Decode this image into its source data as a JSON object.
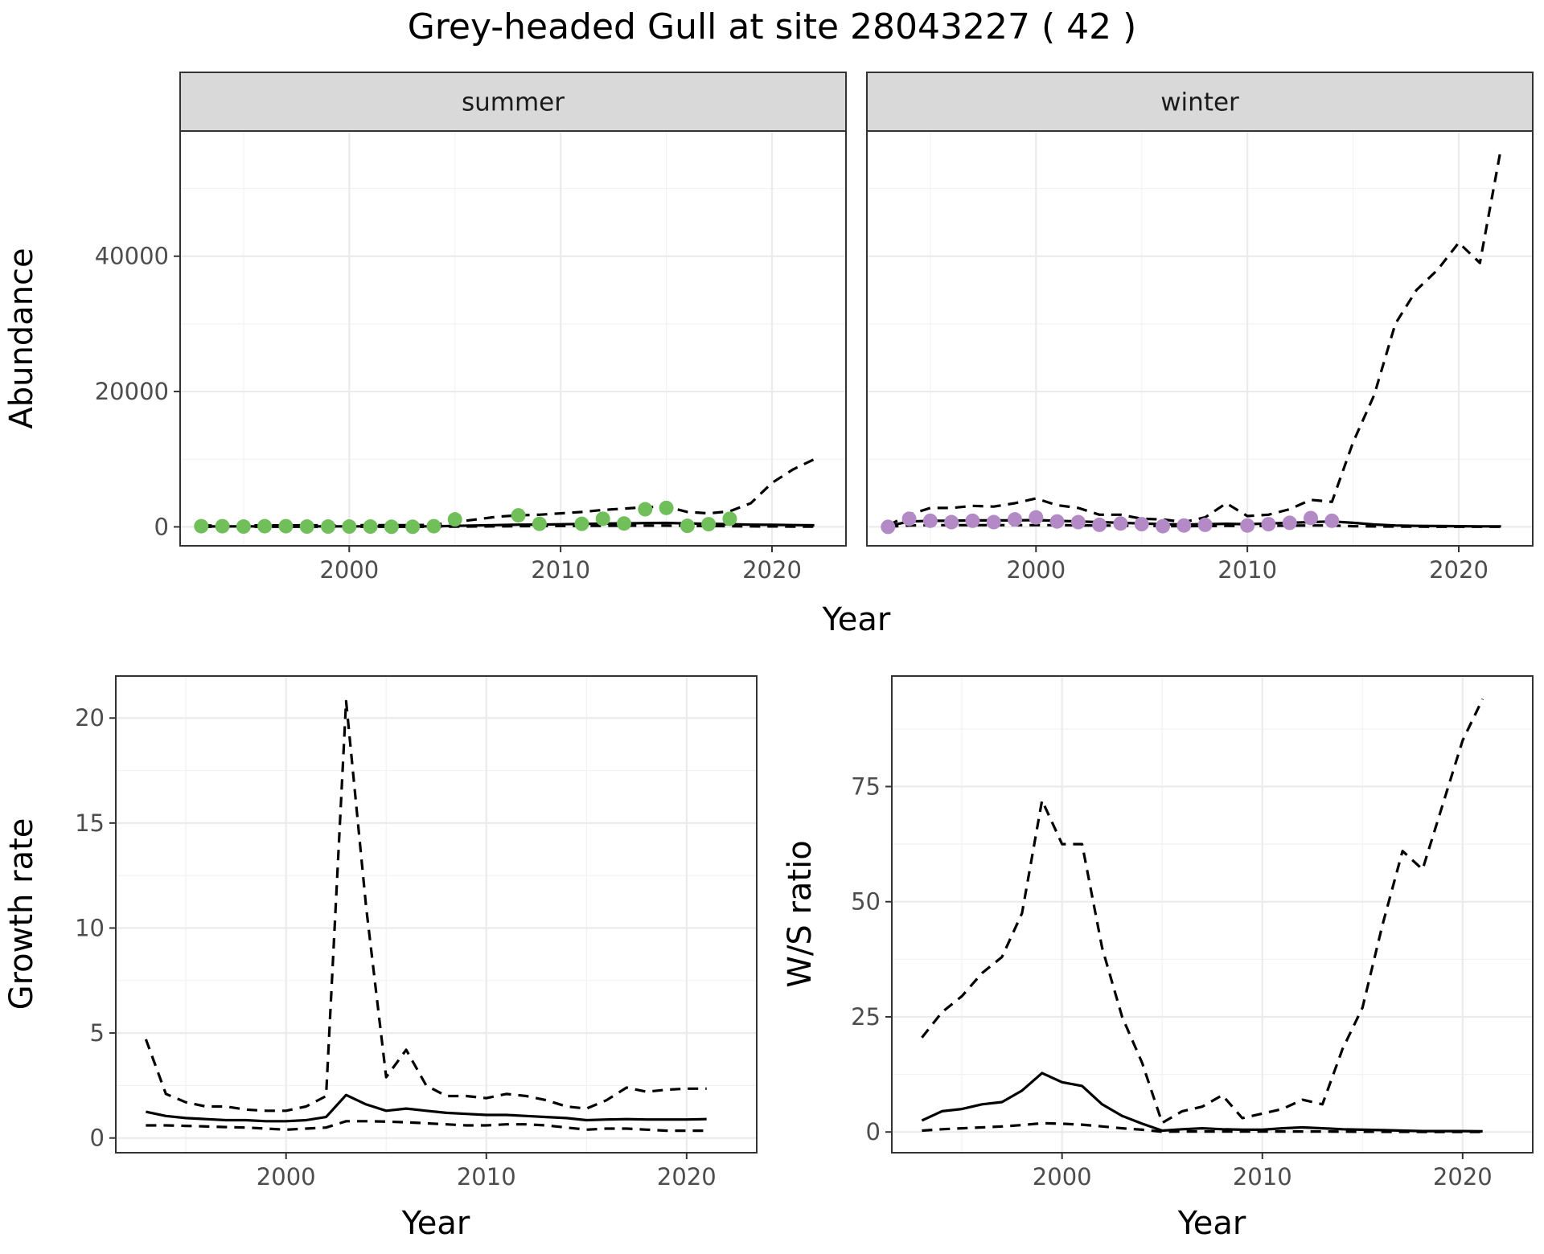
{
  "figure": {
    "title": "Grey-headed Gull at site 28043227 ( 42 )"
  },
  "chart_data": [
    {
      "type": "line",
      "panel": "summer",
      "facet_label": "summer",
      "xlabel": "Year",
      "ylabel": "Abundance",
      "xlim": [
        1992,
        2023.5
      ],
      "ylim": [
        -2800,
        58500
      ],
      "xticks": [
        2000,
        2010,
        2020
      ],
      "yticks": [
        0,
        20000,
        40000
      ],
      "xtick_labels": [
        "2000",
        "2010",
        "2020"
      ],
      "ytick_labels": [
        "0",
        "20000",
        "40000"
      ],
      "point_color": "#70bf5a",
      "series": [
        {
          "style": "estimate-solid",
          "x": [
            1993,
            1994,
            1995,
            1996,
            1997,
            1998,
            1999,
            2000,
            2001,
            2002,
            2003,
            2004,
            2005,
            2006,
            2007,
            2008,
            2009,
            2010,
            2011,
            2012,
            2013,
            2014,
            2015,
            2016,
            2017,
            2018,
            2019,
            2020,
            2021,
            2022
          ],
          "y": [
            60,
            60,
            70,
            70,
            70,
            70,
            70,
            70,
            70,
            70,
            70,
            80,
            150,
            200,
            260,
            320,
            340,
            380,
            430,
            480,
            520,
            560,
            580,
            500,
            450,
            400,
            330,
            300,
            260,
            230
          ]
        },
        {
          "style": "upper-dashed",
          "x": [
            1993,
            1994,
            1995,
            1996,
            1997,
            1998,
            1999,
            2000,
            2001,
            2002,
            2003,
            2004,
            2005,
            2006,
            2007,
            2008,
            2009,
            2010,
            2011,
            2012,
            2013,
            2014,
            2015,
            2016,
            2017,
            2018,
            2019,
            2020,
            2021,
            2022
          ],
          "y": [
            200,
            200,
            210,
            220,
            220,
            230,
            230,
            240,
            240,
            250,
            250,
            300,
            700,
            1100,
            1500,
            1700,
            1800,
            2000,
            2200,
            2500,
            2700,
            2900,
            3000,
            2200,
            2000,
            2300,
            3500,
            6500,
            8500,
            10000
          ]
        },
        {
          "style": "lower-dashed",
          "x": [
            1993,
            1994,
            1995,
            1996,
            1997,
            1998,
            1999,
            2000,
            2001,
            2002,
            2003,
            2004,
            2005,
            2006,
            2007,
            2008,
            2009,
            2010,
            2011,
            2012,
            2013,
            2014,
            2015,
            2016,
            2017,
            2018,
            2019,
            2020,
            2021,
            2022
          ],
          "y": [
            20,
            20,
            20,
            20,
            20,
            20,
            20,
            20,
            20,
            20,
            20,
            30,
            40,
            60,
            80,
            100,
            120,
            130,
            150,
            160,
            170,
            180,
            180,
            150,
            120,
            100,
            80,
            60,
            40,
            30
          ]
        },
        {
          "style": "observed-points",
          "x": [
            1993,
            1994,
            1995,
            1996,
            1997,
            1998,
            1999,
            2000,
            2001,
            2002,
            2003,
            2004,
            2005,
            2008,
            2009,
            2011,
            2012,
            2013,
            2014,
            2015,
            2016,
            2017,
            2018
          ],
          "y": [
            100,
            100,
            50,
            100,
            100,
            50,
            50,
            50,
            50,
            20,
            20,
            100,
            1100,
            1700,
            450,
            450,
            1200,
            500,
            2600,
            2800,
            150,
            400,
            1200
          ]
        }
      ]
    },
    {
      "type": "line",
      "panel": "winter",
      "facet_label": "winter",
      "xlabel": "Year",
      "ylabel": "Abundance",
      "xlim": [
        1992,
        2023.5
      ],
      "ylim": [
        -2800,
        58500
      ],
      "xticks": [
        2000,
        2010,
        2020
      ],
      "yticks": [
        0,
        20000,
        40000
      ],
      "xtick_labels": [
        "2000",
        "2010",
        "2020"
      ],
      "ytick_labels": [
        "0",
        "20000",
        "40000"
      ],
      "point_color": "#b48ac6",
      "series": [
        {
          "style": "estimate-solid",
          "x": [
            1993,
            1994,
            1995,
            1996,
            1997,
            1998,
            1999,
            2000,
            2001,
            2002,
            2003,
            2004,
            2005,
            2006,
            2007,
            2008,
            2009,
            2010,
            2011,
            2012,
            2013,
            2014,
            2015,
            2016,
            2017,
            2018,
            2019,
            2020,
            2021,
            2022
          ],
          "y": [
            100,
            800,
            900,
            900,
            950,
            950,
            950,
            1000,
            900,
            800,
            700,
            600,
            500,
            400,
            350,
            400,
            450,
            400,
            500,
            600,
            700,
            800,
            600,
            350,
            200,
            150,
            120,
            100,
            80,
            70
          ]
        },
        {
          "style": "upper-dashed",
          "x": [
            1993,
            1994,
            1995,
            1996,
            1997,
            1998,
            1999,
            2000,
            2001,
            2002,
            2003,
            2004,
            2005,
            2006,
            2007,
            2008,
            2009,
            2010,
            2011,
            2012,
            2013,
            2014,
            2015,
            2016,
            2017,
            2018,
            2019,
            2020,
            2021,
            2022
          ],
          "y": [
            200,
            1800,
            2800,
            2800,
            3100,
            3000,
            3500,
            4200,
            3200,
            2800,
            1800,
            1800,
            1200,
            1100,
            700,
            1400,
            3500,
            1600,
            1800,
            2600,
            4000,
            3700,
            12500,
            19500,
            30000,
            35000,
            38000,
            42000,
            39000,
            56000
          ]
        },
        {
          "style": "lower-dashed",
          "x": [
            1993,
            1994,
            1995,
            1996,
            1997,
            1998,
            1999,
            2000,
            2001,
            2002,
            2003,
            2004,
            2005,
            2006,
            2007,
            2008,
            2009,
            2010,
            2011,
            2012,
            2013,
            2014,
            2015,
            2016,
            2017,
            2018,
            2019,
            2020,
            2021,
            2022
          ],
          "y": [
            20,
            200,
            250,
            250,
            250,
            250,
            250,
            250,
            250,
            220,
            200,
            180,
            150,
            120,
            100,
            120,
            150,
            130,
            150,
            180,
            200,
            200,
            100,
            60,
            40,
            30,
            20,
            20,
            10,
            10
          ]
        },
        {
          "style": "observed-points",
          "x": [
            1993,
            1994,
            1995,
            1996,
            1997,
            1998,
            1999,
            2000,
            2001,
            2002,
            2003,
            2004,
            2005,
            2006,
            2007,
            2008,
            2010,
            2011,
            2012,
            2013,
            2014
          ],
          "y": [
            0,
            1200,
            900,
            700,
            900,
            700,
            1100,
            1400,
            800,
            700,
            300,
            500,
            400,
            100,
            200,
            300,
            200,
            400,
            600,
            1300,
            900
          ]
        }
      ]
    },
    {
      "type": "line",
      "panel": "growth",
      "xlabel": "Year",
      "ylabel": "Growth rate",
      "xlim": [
        1991.5,
        2023.5
      ],
      "ylim": [
        -0.7,
        22
      ],
      "xticks": [
        2000,
        2010,
        2020
      ],
      "yticks": [
        0,
        5,
        10,
        15,
        20
      ],
      "xtick_labels": [
        "2000",
        "2010",
        "2020"
      ],
      "ytick_labels": [
        "0",
        "5",
        "10",
        "15",
        "20"
      ],
      "series": [
        {
          "style": "estimate-solid",
          "x": [
            1993,
            1994,
            1995,
            1996,
            1997,
            1998,
            1999,
            2000,
            2001,
            2002,
            2003,
            2004,
            2005,
            2006,
            2007,
            2008,
            2009,
            2010,
            2011,
            2012,
            2013,
            2014,
            2015,
            2016,
            2017,
            2018,
            2019,
            2020,
            2021
          ],
          "y": [
            1.25,
            1.05,
            0.95,
            0.9,
            0.85,
            0.85,
            0.8,
            0.8,
            0.85,
            1.0,
            2.05,
            1.6,
            1.3,
            1.4,
            1.3,
            1.2,
            1.15,
            1.1,
            1.1,
            1.05,
            1.0,
            0.95,
            0.85,
            0.88,
            0.9,
            0.88,
            0.88,
            0.88,
            0.9
          ]
        },
        {
          "style": "upper-dashed",
          "x": [
            1993,
            1994,
            1995,
            1996,
            1997,
            1998,
            1999,
            2000,
            2001,
            2002,
            2003,
            2004,
            2005,
            2006,
            2007,
            2008,
            2009,
            2010,
            2011,
            2012,
            2013,
            2014,
            2015,
            2016,
            2017,
            2018,
            2019,
            2020,
            2021
          ],
          "y": [
            4.7,
            2.1,
            1.7,
            1.5,
            1.5,
            1.35,
            1.3,
            1.3,
            1.5,
            2.0,
            20.8,
            11.0,
            2.9,
            4.2,
            2.5,
            2.0,
            2.0,
            1.9,
            2.1,
            2.0,
            1.8,
            1.5,
            1.4,
            1.8,
            2.4,
            2.2,
            2.3,
            2.35,
            2.35
          ]
        },
        {
          "style": "lower-dashed",
          "x": [
            1993,
            1994,
            1995,
            1996,
            1997,
            1998,
            1999,
            2000,
            2001,
            2002,
            2003,
            2004,
            2005,
            2006,
            2007,
            2008,
            2009,
            2010,
            2011,
            2012,
            2013,
            2014,
            2015,
            2016,
            2017,
            2018,
            2019,
            2020,
            2021
          ],
          "y": [
            0.6,
            0.6,
            0.58,
            0.55,
            0.52,
            0.5,
            0.45,
            0.4,
            0.45,
            0.5,
            0.8,
            0.8,
            0.78,
            0.75,
            0.7,
            0.65,
            0.6,
            0.6,
            0.65,
            0.65,
            0.6,
            0.5,
            0.4,
            0.45,
            0.45,
            0.4,
            0.35,
            0.35,
            0.35
          ]
        }
      ]
    },
    {
      "type": "line",
      "panel": "ratio",
      "xlabel": "Year",
      "ylabel": "W/S ratio",
      "xlim": [
        1991.5,
        2023.5
      ],
      "ylim": [
        -4.5,
        99
      ],
      "xticks": [
        2000,
        2010,
        2020
      ],
      "yticks": [
        0,
        25,
        50,
        75
      ],
      "xtick_labels": [
        "2000",
        "2010",
        "2020"
      ],
      "ytick_labels": [
        "0",
        "25",
        "50",
        "75"
      ],
      "series": [
        {
          "style": "estimate-solid",
          "x": [
            1993,
            1994,
            1995,
            1996,
            1997,
            1998,
            1999,
            2000,
            2001,
            2002,
            2003,
            2004,
            2005,
            2006,
            2007,
            2008,
            2009,
            2010,
            2011,
            2012,
            2013,
            2014,
            2015,
            2016,
            2017,
            2018,
            2019,
            2020,
            2021
          ],
          "y": [
            2.5,
            4.5,
            5.0,
            6.0,
            6.5,
            9.0,
            12.8,
            10.8,
            10.0,
            6.0,
            3.5,
            1.8,
            0.3,
            0.6,
            0.8,
            0.6,
            0.5,
            0.5,
            0.8,
            1.0,
            0.8,
            0.6,
            0.5,
            0.4,
            0.3,
            0.2,
            0.2,
            0.2,
            0.15
          ]
        },
        {
          "style": "upper-dashed",
          "x": [
            1993,
            1994,
            1995,
            1996,
            1997,
            1998,
            1999,
            2000,
            2001,
            2002,
            2003,
            2004,
            2005,
            2006,
            2007,
            2008,
            2009,
            2010,
            2011,
            2012,
            2013,
            2014,
            2015,
            2016,
            2017,
            2018,
            2019,
            2020,
            2021
          ],
          "y": [
            20.5,
            26.0,
            29.5,
            34.5,
            38.0,
            47.5,
            72.0,
            62.5,
            62.5,
            40.0,
            25.0,
            15.0,
            2.0,
            4.5,
            5.5,
            8.0,
            3.0,
            4.0,
            5.0,
            7.0,
            6.0,
            18.0,
            27.0,
            45.0,
            61.0,
            57.0,
            71.0,
            85.0,
            94.0
          ]
        },
        {
          "style": "lower-dashed",
          "x": [
            1993,
            1994,
            1995,
            1996,
            1997,
            1998,
            1999,
            2000,
            2001,
            2002,
            2003,
            2004,
            2005,
            2006,
            2007,
            2008,
            2009,
            2010,
            2011,
            2012,
            2013,
            2014,
            2015,
            2016,
            2017,
            2018,
            2019,
            2020,
            2021
          ],
          "y": [
            0.3,
            0.6,
            0.8,
            1.0,
            1.2,
            1.5,
            1.9,
            1.8,
            1.6,
            1.2,
            0.8,
            0.5,
            0.05,
            0.1,
            0.1,
            0.1,
            0.1,
            0.1,
            0.1,
            0.1,
            0.1,
            0.08,
            0.05,
            0.04,
            0.03,
            0.02,
            0.02,
            0.02,
            0.01
          ]
        }
      ]
    }
  ]
}
